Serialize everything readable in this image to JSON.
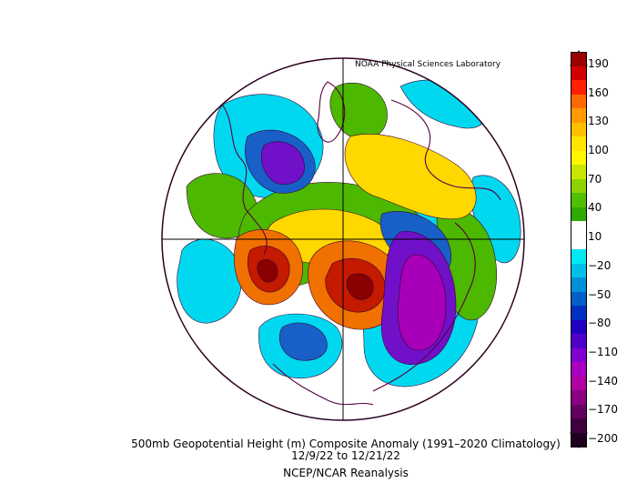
{
  "credit": "NOAA Physical Sciences Laboratory",
  "title": "500mb Geopotential Height (m) Composite Anomaly (1991–2020 Climatology)",
  "dates": "12/9/22   to 12/21/22",
  "source": "NCEP/NCAR Reanalysis",
  "colorbar": {
    "labels": [
      "190",
      "160",
      "130",
      "100",
      "70",
      "40",
      "10",
      "−20",
      "−50",
      "−80",
      "−110",
      "−140",
      "−170",
      "−200"
    ],
    "colors": [
      "#9b0000",
      "#d20000",
      "#ff2000",
      "#ff6a00",
      "#ff9a00",
      "#ffc000",
      "#ffe400",
      "#fff600",
      "#c8e600",
      "#8ed200",
      "#4fc000",
      "#2eaa00",
      "#ffffff",
      "#ffffff",
      "#00e8f0",
      "#00c0e8",
      "#0090d8",
      "#0060c8",
      "#0030c0",
      "#2000c0",
      "#5000c8",
      "#8000d0",
      "#a800c0",
      "#b000a0",
      "#8a0080",
      "#640060",
      "#400040",
      "#200020"
    ]
  },
  "map_colors": {
    "red_dark": "#8b0000",
    "red": "#c41a00",
    "orange": "#f07000",
    "yellow": "#ffd800",
    "yellow_green": "#c8dc00",
    "green": "#4cb800",
    "cyan": "#00d8f0",
    "blue": "#1860c8",
    "purple": "#7010c8",
    "magenta": "#a800b8",
    "coast": "#5a0040"
  }
}
